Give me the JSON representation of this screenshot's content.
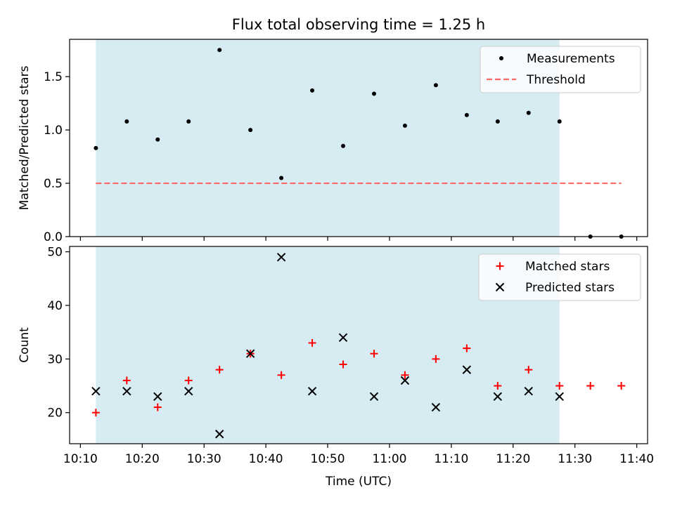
{
  "chart_data": [
    {
      "type": "scatter",
      "title": "Flux total observing time = 1.25 h",
      "xlabel": "",
      "ylabel": "Matched/Predicted stars",
      "x_type": "time",
      "x": [
        "10:12:30",
        "10:17:30",
        "10:22:30",
        "10:27:30",
        "10:32:30",
        "10:37:30",
        "10:42:30",
        "10:47:30",
        "10:52:30",
        "10:57:30",
        "11:02:30",
        "11:07:30",
        "11:12:30",
        "11:17:30",
        "11:22:30",
        "11:27:30",
        "11:32:30",
        "11:37:30"
      ],
      "xlim": [
        "10:08:15",
        "11:41:45"
      ],
      "ylim": [
        0,
        1.85
      ],
      "xticks": [
        "10:10",
        "10:20",
        "10:30",
        "10:40",
        "10:50",
        "11:00",
        "11:10",
        "11:20",
        "11:30",
        "11:40"
      ],
      "xtick_labels_shown": false,
      "yticks": [
        0.0,
        0.5,
        1.0,
        1.5
      ],
      "ytick_labels": [
        "0.0",
        "0.5",
        "1.0",
        "1.5"
      ],
      "shaded_span": {
        "from": "10:12:30",
        "to": "11:27:30",
        "color": "#add8e6"
      },
      "series": [
        {
          "name": "Measurements",
          "marker": "dot",
          "color": "#000000",
          "values": [
            0.83,
            1.08,
            0.91,
            1.08,
            1.75,
            1.0,
            0.55,
            1.37,
            0.85,
            1.34,
            1.04,
            1.42,
            1.14,
            1.08,
            1.16,
            1.08,
            0.0,
            0.0
          ]
        },
        {
          "name": "Threshold",
          "style": "dashed-line",
          "color": "#ff6666",
          "x": [
            "10:12:30",
            "11:37:30"
          ],
          "values": [
            0.5,
            0.5
          ]
        }
      ],
      "legend": {
        "position": "upper right",
        "entries": [
          "Measurements",
          "Threshold"
        ]
      },
      "grid": false
    },
    {
      "type": "scatter",
      "title": "",
      "xlabel": "Time (UTC)",
      "ylabel": "Count",
      "x_type": "time",
      "x": [
        "10:12:30",
        "10:17:30",
        "10:22:30",
        "10:27:30",
        "10:32:30",
        "10:37:30",
        "10:42:30",
        "10:47:30",
        "10:52:30",
        "10:57:30",
        "11:02:30",
        "11:07:30",
        "11:12:30",
        "11:17:30",
        "11:22:30",
        "11:27:30",
        "11:32:30",
        "11:37:30"
      ],
      "xlim": [
        "10:08:15",
        "11:41:45"
      ],
      "ylim": [
        14.2,
        51.0
      ],
      "xticks": [
        "10:10",
        "10:20",
        "10:30",
        "10:40",
        "10:50",
        "11:00",
        "11:10",
        "11:20",
        "11:30",
        "11:40"
      ],
      "xtick_labels": [
        "10:10",
        "10:20",
        "10:30",
        "10:40",
        "10:50",
        "11:00",
        "11:10",
        "11:20",
        "11:30",
        "11:40"
      ],
      "yticks": [
        20,
        30,
        40,
        50
      ],
      "ytick_labels": [
        "20",
        "30",
        "40",
        "50"
      ],
      "shaded_span": {
        "from": "10:12:30",
        "to": "11:27:30",
        "color": "#add8e6"
      },
      "series": [
        {
          "name": "Matched stars",
          "marker": "plus",
          "color": "#ff0000",
          "values": [
            20,
            26,
            21,
            26,
            28,
            31,
            27,
            33,
            29,
            31,
            27,
            30,
            32,
            25,
            28,
            25,
            25,
            25
          ]
        },
        {
          "name": "Predicted stars",
          "marker": "x",
          "color": "#000000",
          "x": [
            "10:12:30",
            "10:17:30",
            "10:22:30",
            "10:27:30",
            "10:32:30",
            "10:37:30",
            "10:42:30",
            "10:47:30",
            "10:52:30",
            "10:57:30",
            "11:02:30",
            "11:07:30",
            "11:12:30",
            "11:17:30",
            "11:22:30",
            "11:27:30"
          ],
          "values": [
            24,
            24,
            23,
            24,
            16,
            31,
            49,
            24,
            34,
            23,
            26,
            21,
            28,
            23,
            24,
            23
          ]
        }
      ],
      "legend": {
        "position": "upper right",
        "entries": [
          "Matched stars",
          "Predicted stars"
        ]
      },
      "grid": false
    }
  ]
}
